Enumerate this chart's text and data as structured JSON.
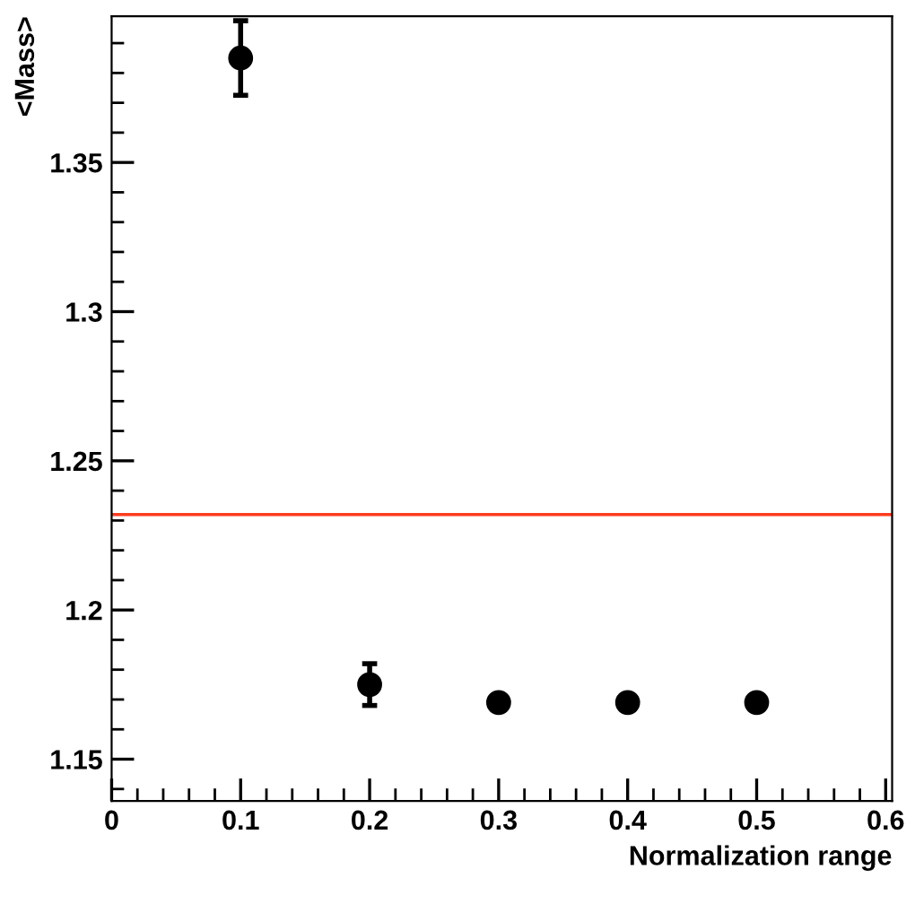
{
  "chart_data": {
    "type": "scatter",
    "xlabel": "Normalization range",
    "ylabel": "<Mass>",
    "x": [
      0.1,
      0.2,
      0.3,
      0.4,
      0.5
    ],
    "series": [
      {
        "color": "#000000",
        "values": [
          1.385,
          1.175,
          1.169,
          1.169,
          1.169
        ],
        "errors": [
          0.0125,
          0.007,
          null,
          null,
          null
        ]
      }
    ],
    "marker": "circle",
    "xlim": [
      0,
      0.605
    ],
    "ylim": [
      1.136,
      1.399
    ],
    "xticks": [
      0,
      0.1,
      0.2,
      0.3,
      0.4,
      0.5,
      0.6
    ],
    "yticks": [
      1.15,
      1.2,
      1.25,
      1.3,
      1.35
    ],
    "ref_lines": [
      {
        "axis": "y",
        "value": 1.232,
        "color": "#ff3b1f"
      }
    ],
    "grid": false,
    "legend": false
  }
}
